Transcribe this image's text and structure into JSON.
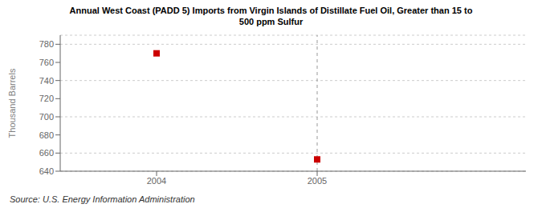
{
  "chart_data": {
    "type": "scatter",
    "title": "Annual West Coast (PADD 5) Imports from Virgin Islands of Distillate Fuel Oil, Greater than 15 to\n500 ppm Sulfur",
    "y_label": "Thousand Barrels",
    "source": "Source: U.S. Energy Information Administration",
    "x": [
      2004,
      2005
    ],
    "values": [
      770,
      653
    ],
    "xlim": [
      2003.4,
      2006.3
    ],
    "xticks": [
      2004,
      2005
    ],
    "ylim": [
      640,
      790
    ],
    "yticks": [
      640,
      660,
      680,
      700,
      720,
      740,
      760,
      780
    ],
    "color": "#cc0000",
    "marker": "square",
    "vline": 2005,
    "grid": true
  }
}
